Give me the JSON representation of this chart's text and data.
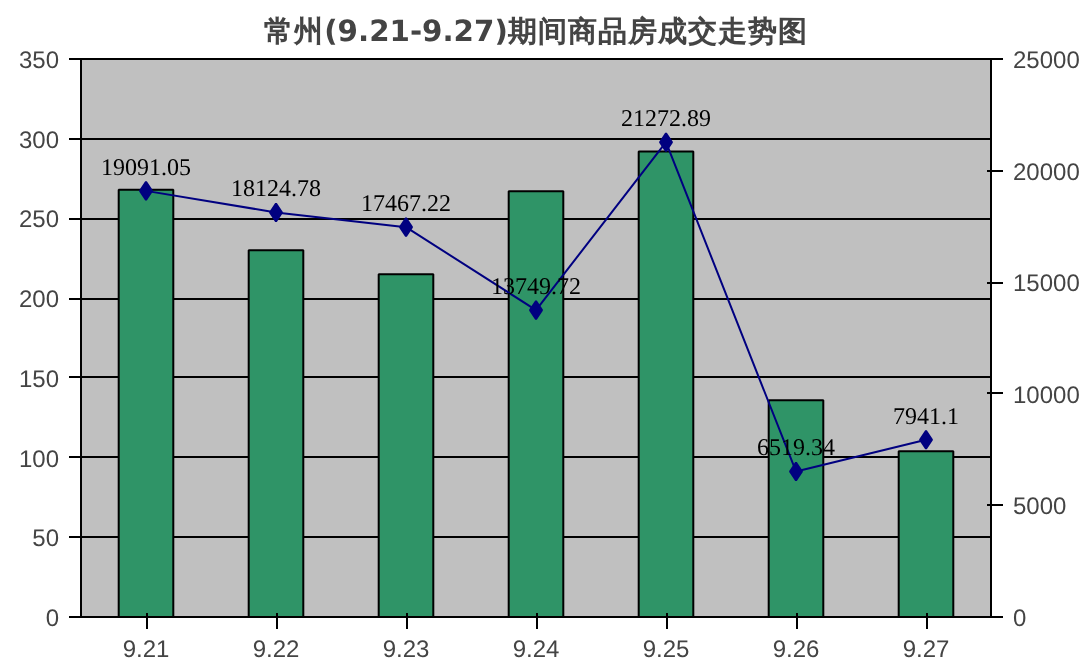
{
  "chart_data": {
    "type": "bar",
    "title": "常州(9.21-9.27)期间商品房成交走势图",
    "categories": [
      "9.21",
      "9.22",
      "9.23",
      "9.24",
      "9.25",
      "9.26",
      "9.27"
    ],
    "series": [
      {
        "color": "#2f9467",
        "values": [
          268,
          230,
          215,
          267,
          292,
          136,
          104
        ]
      },
      {
        "type": "line",
        "axis": "y2",
        "color": "#000080",
        "marker": "diamond",
        "values": [
          19091.05,
          18124.78,
          17467.22,
          13749.72,
          21272.89,
          6519.34,
          7941.1
        ],
        "value_labels": [
          "19091.05",
          "18124.78",
          "17467.22",
          "13749.72",
          "21272.89",
          "6519.34",
          "7941.1"
        ]
      }
    ],
    "ylim": [
      0,
      350
    ],
    "yticks": [
      0,
      50,
      100,
      150,
      200,
      250,
      300,
      350
    ],
    "y2lim": [
      0,
      25000
    ],
    "y2ticks": [
      0,
      5000,
      10000,
      15000,
      20000,
      25000
    ],
    "grid": "y"
  }
}
